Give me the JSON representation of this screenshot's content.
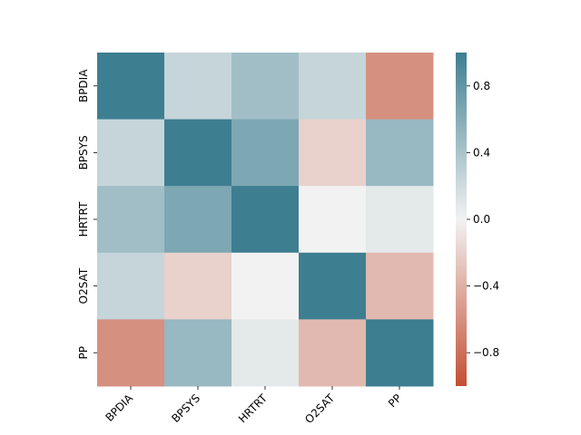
{
  "chart_data": {
    "type": "heatmap",
    "title": "",
    "xlabel": "",
    "ylabel": "",
    "rows": [
      "BPDIA",
      "BPSYS",
      "HRTRT",
      "O2SAT",
      "PP"
    ],
    "cols": [
      "BPDIA",
      "BPSYS",
      "HRTRT",
      "O2SAT",
      "PP"
    ],
    "values": [
      [
        1.0,
        0.25,
        0.45,
        0.25,
        -0.6
      ],
      [
        0.25,
        1.0,
        0.65,
        -0.2,
        0.5
      ],
      [
        0.45,
        0.65,
        1.0,
        0.0,
        0.08
      ],
      [
        0.25,
        -0.2,
        0.0,
        1.0,
        -0.35
      ],
      [
        -0.6,
        0.5,
        0.08,
        -0.35,
        1.0
      ]
    ],
    "colorbar": {
      "vmin": -1,
      "vmax": 1,
      "ticks": [
        0.8,
        0.4,
        0.0,
        -0.4,
        -0.8
      ],
      "tick_labels": [
        "0.8",
        "0.4",
        "0.0",
        "−0.4",
        "−0.8"
      ]
    },
    "colors": {
      "negative": "#c44e34",
      "neutral": "#f2f2f2",
      "positive": "#3e7e91"
    }
  }
}
